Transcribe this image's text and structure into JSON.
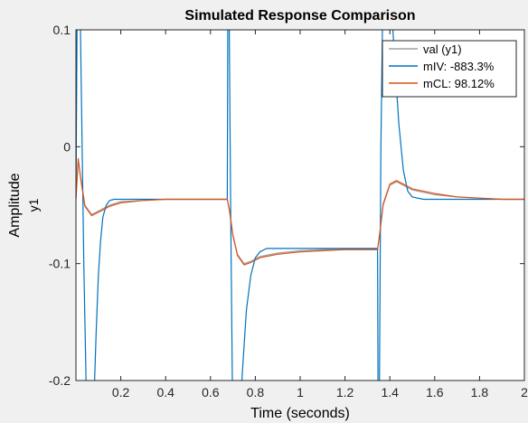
{
  "chart_data": {
    "type": "line",
    "title": "Simulated Response Comparison",
    "xlabel": "Time (seconds)",
    "ylabel": "Amplitude",
    "ylabel2": "y1",
    "xlim": [
      0,
      2
    ],
    "ylim": [
      -0.2,
      0.1
    ],
    "xticks": [
      0.2,
      0.4,
      0.6,
      0.8,
      1.0,
      1.2,
      1.4,
      1.6,
      1.8,
      2.0
    ],
    "xtick_labels": [
      "0.2",
      "0.4",
      "0.6",
      "0.8",
      "1",
      "1.2",
      "1.4",
      "1.6",
      "1.8",
      "2"
    ],
    "yticks": [
      -0.2,
      -0.1,
      0,
      0.1
    ],
    "ytick_labels": [
      "-0.2",
      "-0.1",
      "0",
      "0.1"
    ],
    "grid": false,
    "legend_position": "top-right",
    "series": [
      {
        "name": "val (y1)",
        "color": "#a0a0a0",
        "x": [
          0.0,
          0.01,
          0.02,
          0.04,
          0.07,
          0.1,
          0.15,
          0.2,
          0.3,
          0.4,
          0.5,
          0.6,
          0.675,
          0.685,
          0.7,
          0.72,
          0.75,
          0.78,
          0.82,
          0.9,
          1.0,
          1.1,
          1.2,
          1.3,
          1.345,
          1.355,
          1.37,
          1.4,
          1.43,
          1.46,
          1.5,
          1.6,
          1.7,
          1.8,
          1.9,
          2.0
        ],
        "y": [
          -0.045,
          -0.012,
          -0.025,
          -0.05,
          -0.058,
          -0.055,
          -0.05,
          -0.047,
          -0.046,
          -0.045,
          -0.045,
          -0.045,
          -0.045,
          -0.055,
          -0.075,
          -0.092,
          -0.1,
          -0.098,
          -0.094,
          -0.091,
          -0.089,
          -0.088,
          -0.088,
          -0.088,
          -0.088,
          -0.075,
          -0.05,
          -0.033,
          -0.03,
          -0.033,
          -0.037,
          -0.041,
          -0.043,
          -0.044,
          -0.045,
          -0.045
        ]
      },
      {
        "name": "mIV: -883.3%",
        "color": "#0072bd",
        "x": [
          0.0,
          0.005,
          0.01,
          0.015,
          0.02,
          0.035,
          0.05,
          0.065,
          0.08,
          0.09,
          0.1,
          0.11,
          0.12,
          0.135,
          0.15,
          0.17,
          0.2,
          0.25,
          0.3,
          0.4,
          0.5,
          0.6,
          0.675,
          0.678,
          0.682,
          0.69,
          0.7,
          0.71,
          0.72,
          0.74,
          0.76,
          0.78,
          0.8,
          0.82,
          0.85,
          0.9,
          1.0,
          1.1,
          1.2,
          1.3,
          1.345,
          1.348,
          1.352,
          1.36,
          1.37,
          1.38,
          1.39,
          1.4,
          1.41,
          1.42,
          1.43,
          1.44,
          1.46,
          1.48,
          1.5,
          1.55,
          1.6,
          1.7,
          1.8,
          1.9,
          2.0
        ],
        "y": [
          -0.045,
          0.1,
          0.15,
          0.15,
          0.1,
          -0.1,
          -0.25,
          -0.25,
          -0.22,
          -0.16,
          -0.11,
          -0.08,
          -0.06,
          -0.05,
          -0.046,
          -0.045,
          -0.045,
          -0.045,
          -0.045,
          -0.045,
          -0.045,
          -0.045,
          -0.045,
          0.15,
          0.15,
          -0.05,
          -0.25,
          -0.25,
          -0.25,
          -0.2,
          -0.14,
          -0.11,
          -0.095,
          -0.09,
          -0.087,
          -0.087,
          -0.087,
          -0.087,
          -0.087,
          -0.087,
          -0.087,
          -0.25,
          -0.25,
          0.0,
          0.15,
          0.15,
          0.15,
          0.14,
          0.11,
          0.08,
          0.05,
          0.02,
          -0.02,
          -0.038,
          -0.043,
          -0.045,
          -0.045,
          -0.045,
          -0.045,
          -0.045,
          -0.045
        ]
      },
      {
        "name": "mCL: 98.12%",
        "color": "#d95319",
        "x": [
          0.0,
          0.01,
          0.02,
          0.04,
          0.07,
          0.1,
          0.15,
          0.2,
          0.3,
          0.4,
          0.5,
          0.6,
          0.675,
          0.685,
          0.7,
          0.72,
          0.75,
          0.78,
          0.82,
          0.9,
          1.0,
          1.1,
          1.2,
          1.3,
          1.345,
          1.355,
          1.37,
          1.4,
          1.43,
          1.46,
          1.5,
          1.6,
          1.7,
          1.8,
          1.9,
          2.0
        ],
        "y": [
          -0.045,
          -0.01,
          -0.026,
          -0.051,
          -0.059,
          -0.056,
          -0.051,
          -0.048,
          -0.046,
          -0.045,
          -0.045,
          -0.045,
          -0.045,
          -0.055,
          -0.076,
          -0.093,
          -0.101,
          -0.099,
          -0.095,
          -0.092,
          -0.09,
          -0.089,
          -0.088,
          -0.088,
          -0.088,
          -0.074,
          -0.049,
          -0.032,
          -0.029,
          -0.032,
          -0.036,
          -0.04,
          -0.043,
          -0.044,
          -0.045,
          -0.045
        ]
      }
    ]
  }
}
